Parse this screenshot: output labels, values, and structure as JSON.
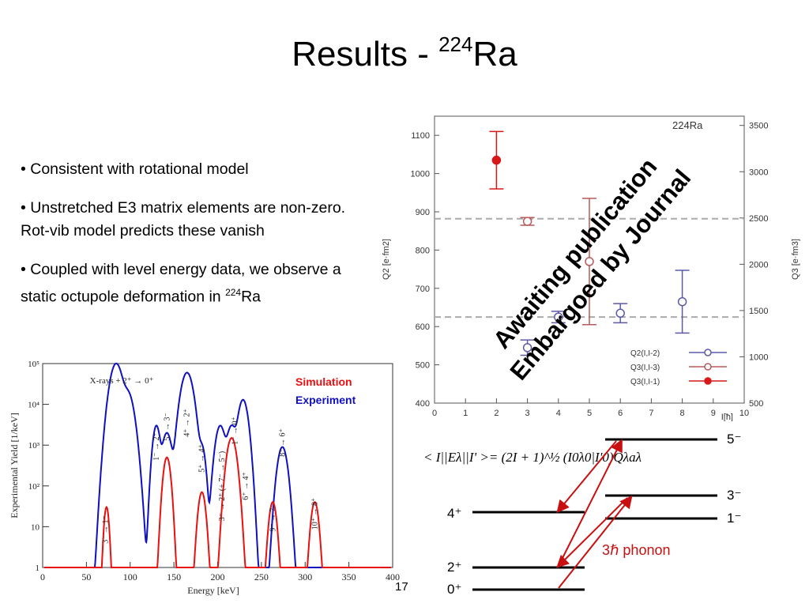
{
  "slide": {
    "title_main": "Results - ",
    "title_sup": "224",
    "title_element": "Ra",
    "bullets": [
      "• Consistent with rotational model",
      "• Unstretched E3 matrix elements are non-zero. Rot-vib model predicts these vanish",
      "• Coupled with level energy data, we observe  a static octupole deformation in "
    ],
    "bullet3_sup": "224",
    "bullet3_tail": "Ra",
    "page_number": "17",
    "watermark_line1": "Awaiting publication",
    "watermark_line2": "Embargoed by Journal"
  },
  "chart_data": [
    {
      "type": "scatter",
      "title": "224Ra",
      "xlabel": "I[ħ]",
      "ylabel_left": "Q2 [e·fm2]",
      "ylabel_right": "Q3 [e·fm3]",
      "xlim": [
        0,
        10
      ],
      "ylim_left": [
        400,
        1150
      ],
      "ylim_right": [
        500,
        3600
      ],
      "x_ticks": [
        "0",
        "1",
        "2",
        "3",
        "4",
        "5",
        "6",
        "7",
        "8",
        "9",
        "10"
      ],
      "y_ticks_left": [
        "400",
        "500",
        "600",
        "700",
        "800",
        "900",
        "1000",
        "1100"
      ],
      "y_ticks_right": [
        "500",
        "1000",
        "1500",
        "2000",
        "2500",
        "3000",
        "3500"
      ],
      "reference_lines_left": [
        882,
        625
      ],
      "series": [
        {
          "name": "Q2(I,I-2)",
          "color": "#5a5aa8",
          "marker": "open-circle",
          "x": [
            3,
            4,
            6,
            8
          ],
          "y": [
            545,
            625,
            635,
            665
          ],
          "err": [
            20,
            15,
            25,
            82
          ]
        },
        {
          "name": "Q3(I,I-3)",
          "color": "#b85a5a",
          "marker": "open-circle",
          "x": [
            3,
            5
          ],
          "y": [
            875,
            770
          ],
          "err": [
            10,
            165
          ]
        },
        {
          "name": "Q3(I,I-1)",
          "color": "#d81818",
          "marker": "filled-circle",
          "x": [
            2
          ],
          "y": [
            1035
          ],
          "err": [
            75
          ]
        }
      ]
    },
    {
      "type": "line",
      "xlabel": "Energy [keV]",
      "ylabel": "Experimental Yield [1/keV]",
      "xlim": [
        0,
        400
      ],
      "ylim": [
        1,
        100000
      ],
      "yscale": "log",
      "x_ticks": [
        "0",
        "50",
        "100",
        "150",
        "200",
        "250",
        "300",
        "350",
        "400"
      ],
      "y_ticks": [
        "1",
        "10",
        "10²",
        "10³",
        "10⁴",
        "10⁵"
      ],
      "series": [
        {
          "name": "Simulation",
          "color": "#e81010"
        },
        {
          "name": "Experiment",
          "color": "#1010c0"
        }
      ],
      "annotations": [
        "X-rays + 2⁺ → 0⁺",
        "3⁻ → 1⁻",
        "1⁻ → 2⁺",
        "5⁻ → 3⁻",
        "4⁺ → 2⁺",
        "5⁺ → 4⁺",
        "3⁻ → 2⁺ (+ 7⁻ → 5⁻)",
        "1⁻ → 0⁺",
        "6⁺ → 4⁺",
        "9⁻ → 7⁻",
        "8⁺ → 6⁺",
        "10⁺ → 8⁺"
      ]
    }
  ],
  "level_scheme": {
    "equation": "< I||Eλ||I' >= (2I + 1)^½ (I0λ0|I'0)Qλaλ",
    "levels_left": [
      "4⁺",
      "2⁺",
      "0⁺"
    ],
    "levels_right": [
      "5⁻",
      "3⁻",
      "1⁻"
    ],
    "phonon_label": "3ℏ phonon"
  }
}
